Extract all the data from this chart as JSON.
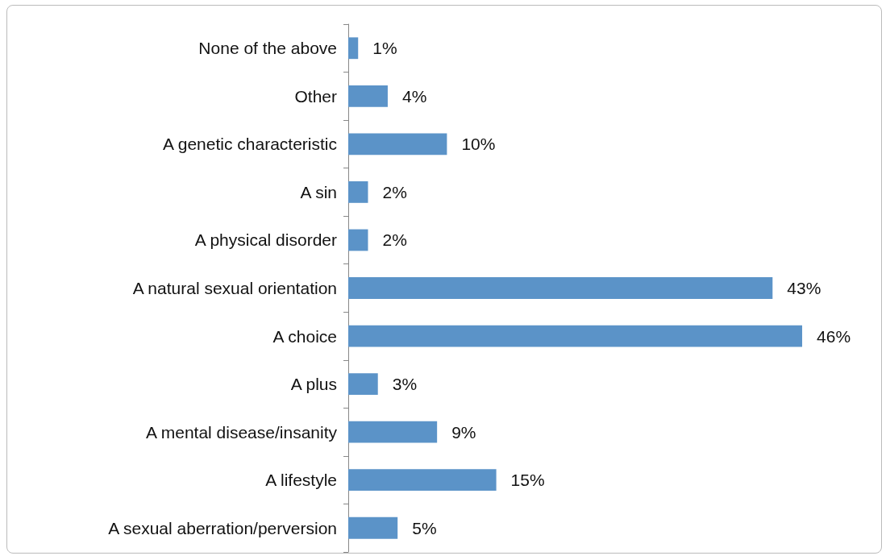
{
  "chart_data": {
    "type": "bar",
    "orientation": "horizontal",
    "categories": [
      "None of the above",
      "Other",
      "A genetic characteristic",
      "A sin",
      "A physical disorder",
      "A natural sexual orientation",
      "A choice",
      "A plus",
      "A mental disease/insanity",
      "A lifestyle",
      "A sexual aberration/perversion"
    ],
    "values": [
      1,
      4,
      10,
      2,
      2,
      43,
      46,
      3,
      9,
      15,
      5
    ],
    "value_labels": [
      "1%",
      "4%",
      "10%",
      "2%",
      "2%",
      "43%",
      "46%",
      "3%",
      "9%",
      "15%",
      "5%"
    ],
    "color": "#5b93c8"
  }
}
